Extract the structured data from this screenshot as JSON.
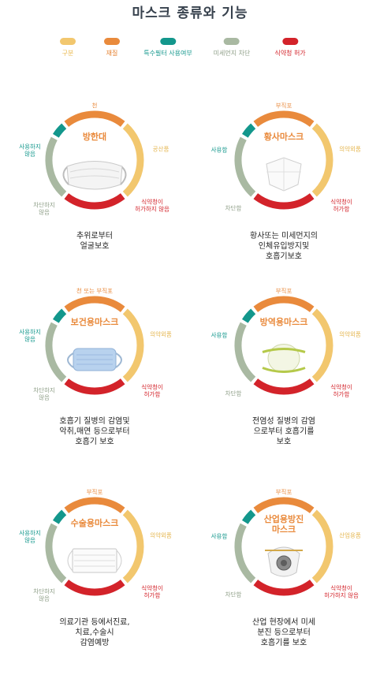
{
  "title": "마스크 종류와 기능",
  "colors": {
    "category": "#f2c76e",
    "material": "#e98a3c",
    "special_filter": "#13978c",
    "fine_dust": "#a9b9a2",
    "kfda": "#d3232a"
  },
  "legend": [
    {
      "label": "구분",
      "color": "#f2c76e",
      "text_color": "#e9b74a"
    },
    {
      "label": "재질",
      "color": "#e98a3c",
      "text_color": "#e57f2c"
    },
    {
      "label": "특수필터 사용여부",
      "color": "#13978c",
      "text_color": "#13978c"
    },
    {
      "label": "미세먼지 차단",
      "color": "#a9b9a2",
      "text_color": "#8f9f88"
    },
    {
      "label": "식약청 허가",
      "color": "#d3232a",
      "text_color": "#d3232a"
    }
  ],
  "masks": [
    {
      "name": "방한대",
      "material": "천",
      "category": "공산품",
      "filter": "사용하지\n않음",
      "dust": "차단하지\n않음",
      "kfda": "식약청이\n허가하지 않음",
      "description": "추위로부터\n얼굴보호",
      "icon": "cloth-mask-icon"
    },
    {
      "name": "황사마스크",
      "material": "부직포",
      "category": "의약외품",
      "filter": "사용함",
      "dust": "차단함",
      "kfda": "식약청이\n허가함",
      "description": "황사또는 미세먼지의\n인체유입방지및\n호흡기보호",
      "icon": "kf-mask-icon"
    },
    {
      "name": "보건용마스크",
      "material": "천 또는 부직포",
      "category": "의약외품",
      "filter": "사용하지\n않음",
      "dust": "차단하지\n않음",
      "kfda": "식약청이\n허가함",
      "description": "호흡기 질병의 감염및\n악취,매연 등으로부터\n호흡기 보호",
      "icon": "health-mask-icon"
    },
    {
      "name": "방역용마스크",
      "material": "부직포",
      "category": "의약외품",
      "filter": "사용함",
      "dust": "차단함",
      "kfda": "식약청이\n허가함",
      "description": "전염성 질병의 감염\n으로부터 호흡기를\n보호",
      "icon": "quarantine-mask-icon"
    },
    {
      "name": "수술용마스크",
      "material": "부직포",
      "category": "의약외품",
      "filter": "사용하지\n않음",
      "dust": "차단하지\n않음",
      "kfda": "식약청이\n허가함",
      "description": "의료기관 등에서진료,\n치료,수술시\n감염예방",
      "icon": "surgical-mask-icon"
    },
    {
      "name": "산업용방진\n마스크",
      "material": "부직포",
      "category": "산업용품",
      "filter": "사용함",
      "dust": "차단함",
      "kfda": "식약청이\n허가하지 않음",
      "description": "산업 현장에서 미세\n분진 등으로부터\n호흡기를 보호",
      "icon": "valve-respirator-icon"
    }
  ]
}
